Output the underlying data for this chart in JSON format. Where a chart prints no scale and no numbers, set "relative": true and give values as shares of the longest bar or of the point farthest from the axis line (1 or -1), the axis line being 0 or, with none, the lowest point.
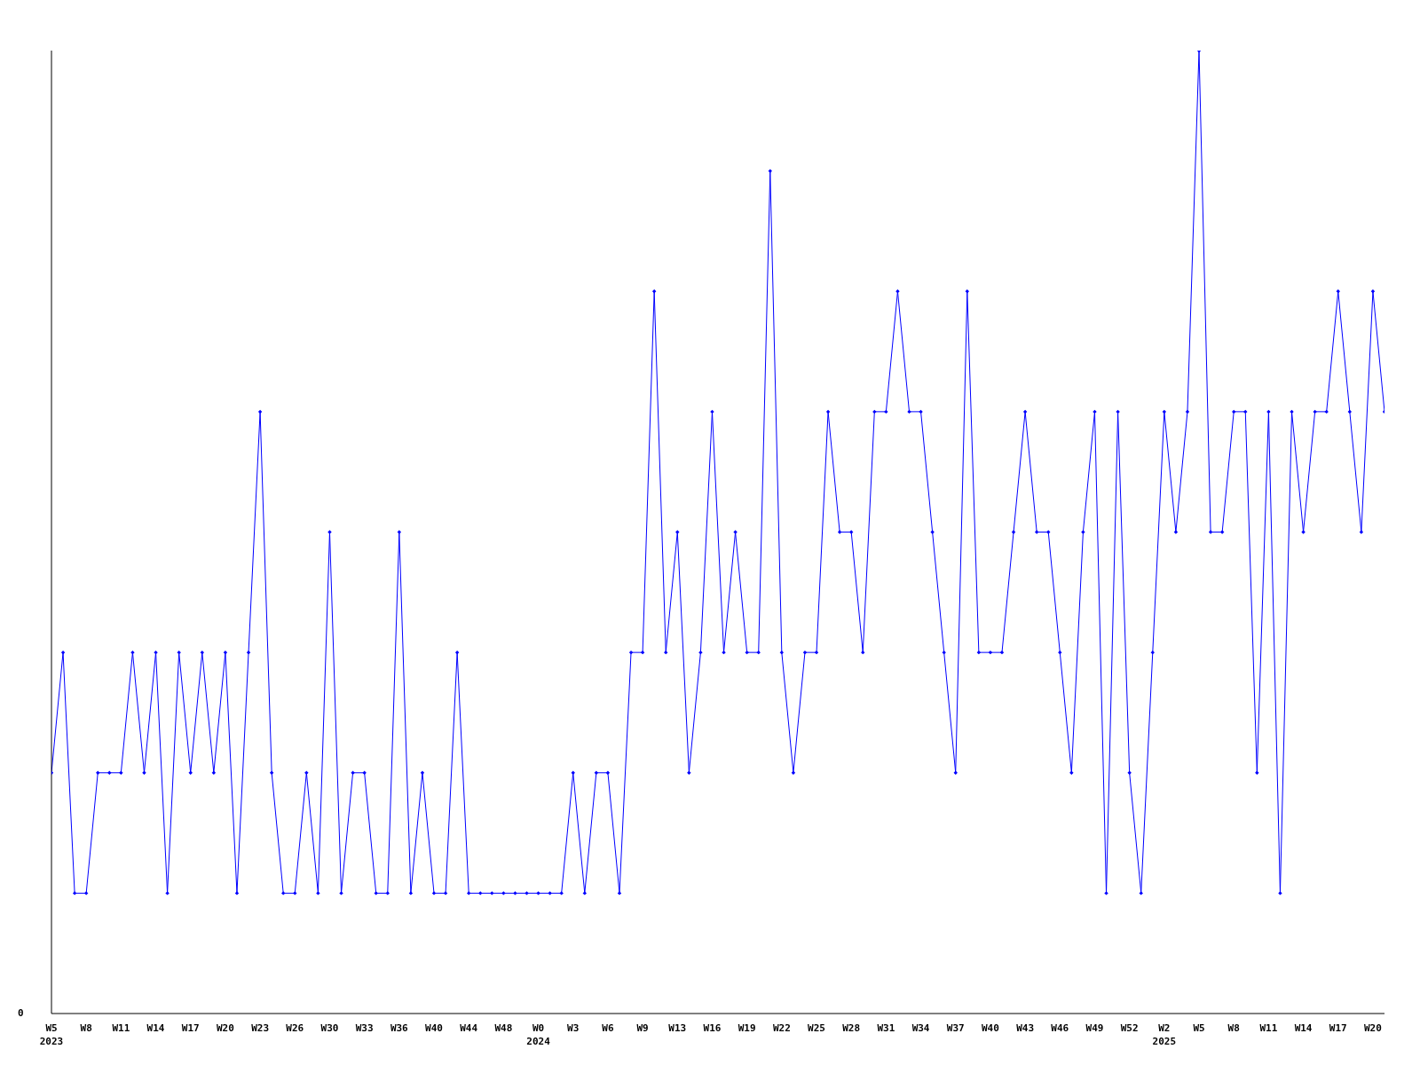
{
  "chart_data": {
    "type": "line",
    "relative": true,
    "annotations": [
      "0"
    ],
    "grid": false,
    "legend": false,
    "marker": "diamond",
    "line_style": "solid",
    "categories": [
      "W5\n2023",
      null,
      null,
      "W8",
      null,
      null,
      "W11",
      null,
      null,
      "W14",
      null,
      null,
      "W17",
      null,
      null,
      "W20",
      null,
      null,
      "W23",
      null,
      null,
      "W26",
      null,
      null,
      "W30",
      null,
      null,
      "W33",
      null,
      null,
      "W36",
      null,
      null,
      "W40",
      null,
      null,
      "W44",
      null,
      null,
      "W48",
      null,
      null,
      "W0\n2024",
      null,
      null,
      "W3",
      null,
      null,
      "W6",
      null,
      null,
      "W9",
      null,
      null,
      "W13",
      null,
      null,
      "W16",
      null,
      null,
      "W19",
      null,
      null,
      "W22",
      null,
      null,
      "W25",
      null,
      null,
      "W28",
      null,
      null,
      "W31",
      null,
      null,
      "W34",
      null,
      null,
      "W37",
      null,
      null,
      "W40",
      null,
      null,
      "W43",
      null,
      null,
      "W46",
      null,
      null,
      "W49",
      null,
      null,
      "W52",
      null,
      null,
      "W2\n2025",
      null,
      null,
      "W5",
      null,
      null,
      "W8",
      null,
      null,
      "W11",
      null,
      null,
      "W14",
      null,
      null,
      "W17",
      null,
      null,
      "W20",
      null
    ],
    "series": [
      {
        "color": "#0000ff",
        "values": [
          0.25,
          0.375,
          0.125,
          0.125,
          0.25,
          0.25,
          0.25,
          0.375,
          0.25,
          0.375,
          0.125,
          0.375,
          0.25,
          0.375,
          0.25,
          0.375,
          0.125,
          0.375,
          0.625,
          0.25,
          0.125,
          0.125,
          0.25,
          0.125,
          0.5,
          0.125,
          0.25,
          0.25,
          0.125,
          0.125,
          0.5,
          0.125,
          0.25,
          0.125,
          0.125,
          0.375,
          0.125,
          0.125,
          0.125,
          0.125,
          0.125,
          0.125,
          0.125,
          0.125,
          0.125,
          0.25,
          0.125,
          0.25,
          0.25,
          0.125,
          0.375,
          0.375,
          0.75,
          0.375,
          0.5,
          0.25,
          0.375,
          0.625,
          0.375,
          0.5,
          0.375,
          0.375,
          0.875,
          0.375,
          0.25,
          0.375,
          0.375,
          0.625,
          0.5,
          0.5,
          0.375,
          0.625,
          0.625,
          0.75,
          0.625,
          0.625,
          0.5,
          0.375,
          0.25,
          0.75,
          0.375,
          0.375,
          0.375,
          0.5,
          0.625,
          0.5,
          0.5,
          0.375,
          0.25,
          0.5,
          0.625,
          0.125,
          0.625,
          0.25,
          0.125,
          0.375,
          0.625,
          0.5,
          0.625,
          1,
          0.5,
          0.5,
          0.625,
          0.625,
          0.25,
          0.625,
          0.125,
          0.625,
          0.5,
          0.625,
          0.625,
          0.75,
          0.625,
          0.5,
          0.75,
          0.625
        ]
      }
    ]
  }
}
